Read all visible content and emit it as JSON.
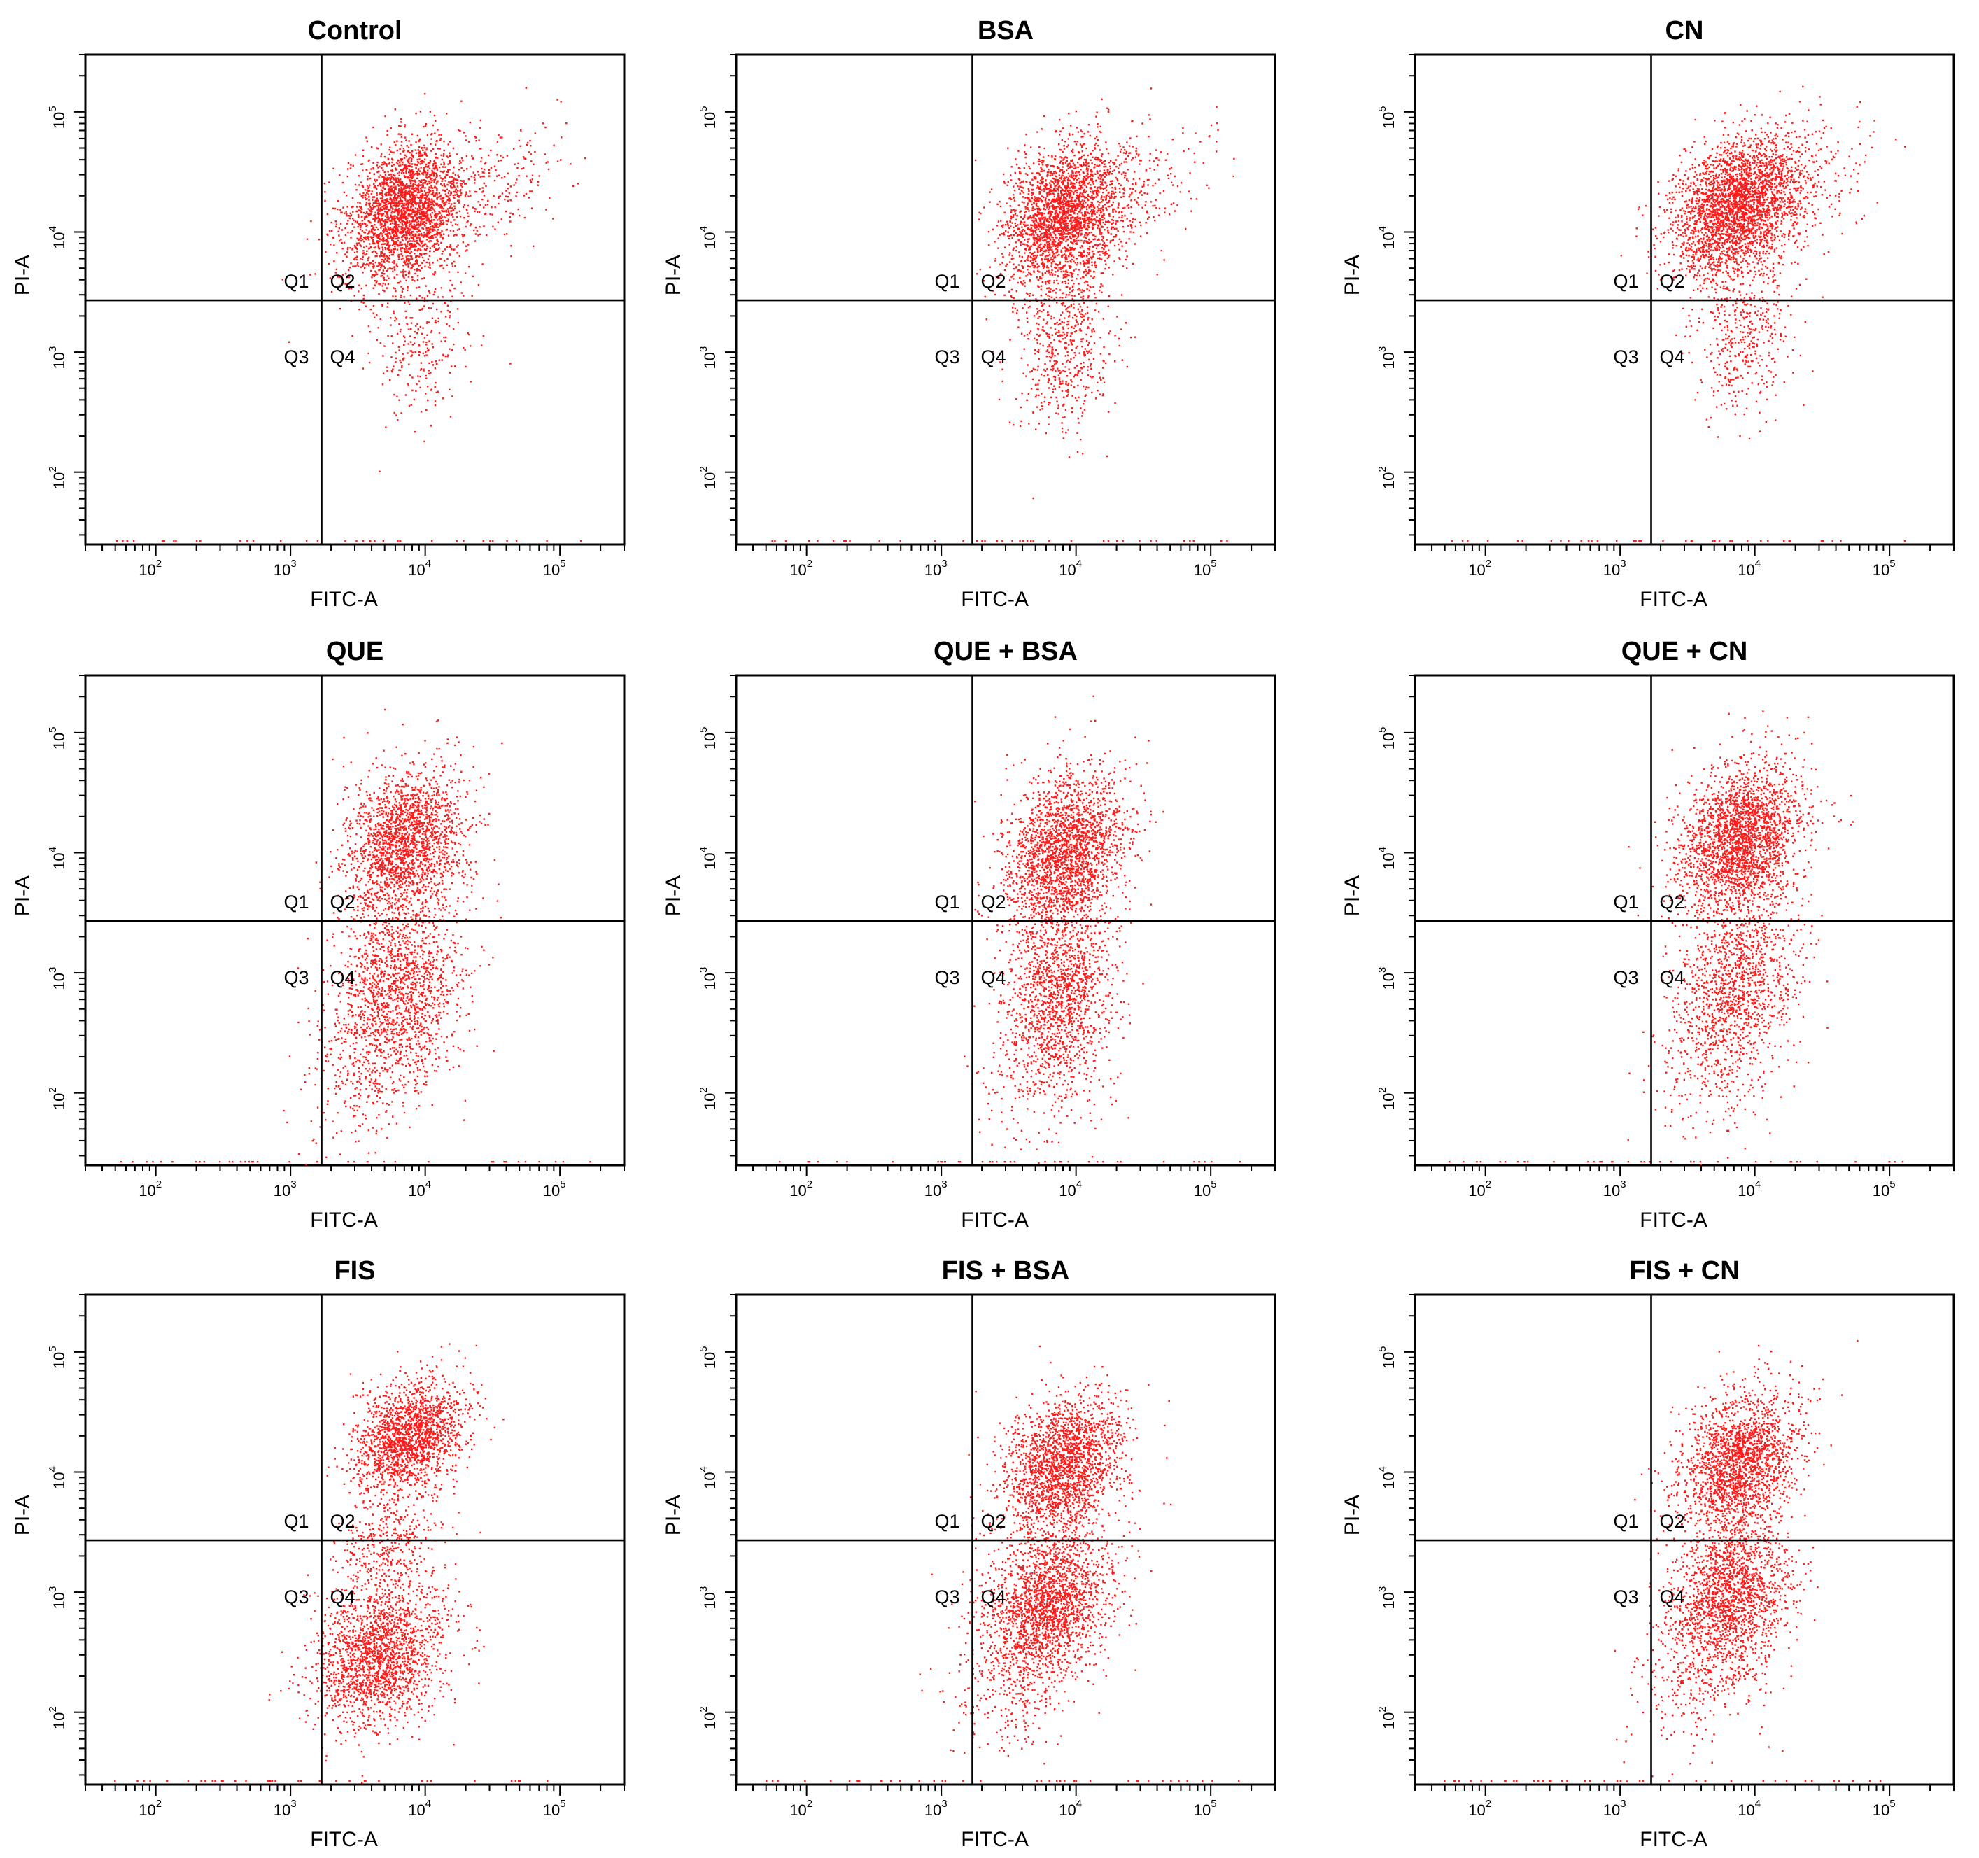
{
  "figure": {
    "point_color": "#ff1a1a",
    "frame_color": "#000000"
  },
  "chart_data": [
    {
      "type": "scatter",
      "title": "Control",
      "xlabel": "FITC-A",
      "ylabel": "PI-A",
      "xscale": "log",
      "yscale": "log",
      "xlim": [
        30,
        300000
      ],
      "ylim": [
        25,
        300000
      ],
      "xticks": [
        {
          "base": "10",
          "exp": "2"
        },
        {
          "base": "10",
          "exp": "3"
        },
        {
          "base": "10",
          "exp": "4"
        },
        {
          "base": "10",
          "exp": "5"
        }
      ],
      "yticks": [
        {
          "base": "10",
          "exp": "2"
        },
        {
          "base": "10",
          "exp": "3"
        },
        {
          "base": "10",
          "exp": "4"
        },
        {
          "base": "10",
          "exp": "5"
        }
      ],
      "gate": {
        "x": 1700,
        "y": 2700
      },
      "quadrant_labels": [
        "Q1",
        "Q2",
        "Q3",
        "Q4"
      ],
      "populations": [
        {
          "cx": 7000,
          "cy": 15000,
          "sx": 0.22,
          "sy": 0.28,
          "n": 2600
        },
        {
          "cx": 9000,
          "cy": 1400,
          "sx": 0.18,
          "sy": 0.35,
          "n": 300
        },
        {
          "cx": 20000,
          "cy": 20000,
          "sx": 0.35,
          "sy": 0.25,
          "n": 300
        }
      ]
    },
    {
      "type": "scatter",
      "title": "BSA",
      "xlabel": "FITC-A",
      "ylabel": "PI-A",
      "xscale": "log",
      "yscale": "log",
      "xlim": [
        30,
        300000
      ],
      "ylim": [
        25,
        300000
      ],
      "xticks": [
        {
          "base": "10",
          "exp": "2"
        },
        {
          "base": "10",
          "exp": "3"
        },
        {
          "base": "10",
          "exp": "4"
        },
        {
          "base": "10",
          "exp": "5"
        }
      ],
      "yticks": [
        {
          "base": "10",
          "exp": "2"
        },
        {
          "base": "10",
          "exp": "3"
        },
        {
          "base": "10",
          "exp": "4"
        },
        {
          "base": "10",
          "exp": "5"
        }
      ],
      "gate": {
        "x": 1700,
        "y": 2700
      },
      "quadrant_labels": [
        "Q1",
        "Q2",
        "Q3",
        "Q4"
      ],
      "populations": [
        {
          "cx": 8000,
          "cy": 14000,
          "sx": 0.22,
          "sy": 0.28,
          "n": 2400
        },
        {
          "cx": 8000,
          "cy": 1200,
          "sx": 0.18,
          "sy": 0.38,
          "n": 600
        },
        {
          "cx": 20000,
          "cy": 20000,
          "sx": 0.35,
          "sy": 0.25,
          "n": 300
        }
      ]
    },
    {
      "type": "scatter",
      "title": "CN",
      "xlabel": "FITC-A",
      "ylabel": "PI-A",
      "xscale": "log",
      "yscale": "log",
      "xlim": [
        30,
        300000
      ],
      "ylim": [
        25,
        300000
      ],
      "xticks": [
        {
          "base": "10",
          "exp": "2"
        },
        {
          "base": "10",
          "exp": "3"
        },
        {
          "base": "10",
          "exp": "4"
        },
        {
          "base": "10",
          "exp": "5"
        }
      ],
      "yticks": [
        {
          "base": "10",
          "exp": "2"
        },
        {
          "base": "10",
          "exp": "3"
        },
        {
          "base": "10",
          "exp": "4"
        },
        {
          "base": "10",
          "exp": "5"
        }
      ],
      "gate": {
        "x": 1700,
        "y": 2700
      },
      "quadrant_labels": [
        "Q1",
        "Q2",
        "Q3",
        "Q4"
      ],
      "populations": [
        {
          "cx": 7000,
          "cy": 16000,
          "sx": 0.24,
          "sy": 0.28,
          "n": 2800
        },
        {
          "cx": 8000,
          "cy": 1300,
          "sx": 0.18,
          "sy": 0.3,
          "n": 400
        },
        {
          "cx": 20000,
          "cy": 25000,
          "sx": 0.3,
          "sy": 0.25,
          "n": 250
        }
      ]
    },
    {
      "type": "scatter",
      "title": "QUE",
      "xlabel": "FITC-A",
      "ylabel": "PI-A",
      "xscale": "log",
      "yscale": "log",
      "xlim": [
        30,
        300000
      ],
      "ylim": [
        25,
        300000
      ],
      "xticks": [
        {
          "base": "10",
          "exp": "2"
        },
        {
          "base": "10",
          "exp": "3"
        },
        {
          "base": "10",
          "exp": "4"
        },
        {
          "base": "10",
          "exp": "5"
        }
      ],
      "yticks": [
        {
          "base": "10",
          "exp": "2"
        },
        {
          "base": "10",
          "exp": "3"
        },
        {
          "base": "10",
          "exp": "4"
        },
        {
          "base": "10",
          "exp": "5"
        }
      ],
      "gate": {
        "x": 1700,
        "y": 2700
      },
      "quadrant_labels": [
        "Q1",
        "Q2",
        "Q3",
        "Q4"
      ],
      "populations": [
        {
          "cx": 7000,
          "cy": 12000,
          "sx": 0.22,
          "sy": 0.3,
          "n": 2000
        },
        {
          "cx": 6000,
          "cy": 700,
          "sx": 0.24,
          "sy": 0.38,
          "n": 1500
        },
        {
          "cx": 4000,
          "cy": 150,
          "sx": 0.25,
          "sy": 0.3,
          "n": 250
        }
      ]
    },
    {
      "type": "scatter",
      "title": "QUE + BSA",
      "xlabel": "FITC-A",
      "ylabel": "PI-A",
      "xscale": "log",
      "yscale": "log",
      "xlim": [
        30,
        300000
      ],
      "ylim": [
        25,
        300000
      ],
      "xticks": [
        {
          "base": "10",
          "exp": "2"
        },
        {
          "base": "10",
          "exp": "3"
        },
        {
          "base": "10",
          "exp": "4"
        },
        {
          "base": "10",
          "exp": "5"
        }
      ],
      "yticks": [
        {
          "base": "10",
          "exp": "2"
        },
        {
          "base": "10",
          "exp": "3"
        },
        {
          "base": "10",
          "exp": "4"
        },
        {
          "base": "10",
          "exp": "5"
        }
      ],
      "gate": {
        "x": 1700,
        "y": 2700
      },
      "quadrant_labels": [
        "Q1",
        "Q2",
        "Q3",
        "Q4"
      ],
      "populations": [
        {
          "cx": 8000,
          "cy": 10000,
          "sx": 0.22,
          "sy": 0.32,
          "n": 2200
        },
        {
          "cx": 7500,
          "cy": 700,
          "sx": 0.2,
          "sy": 0.35,
          "n": 1300
        },
        {
          "cx": 6000,
          "cy": 150,
          "sx": 0.25,
          "sy": 0.3,
          "n": 250
        }
      ]
    },
    {
      "type": "scatter",
      "title": "QUE + CN",
      "xlabel": "FITC-A",
      "ylabel": "PI-A",
      "xscale": "log",
      "yscale": "log",
      "xlim": [
        30,
        300000
      ],
      "ylim": [
        25,
        300000
      ],
      "xticks": [
        {
          "base": "10",
          "exp": "2"
        },
        {
          "base": "10",
          "exp": "3"
        },
        {
          "base": "10",
          "exp": "4"
        },
        {
          "base": "10",
          "exp": "5"
        }
      ],
      "yticks": [
        {
          "base": "10",
          "exp": "2"
        },
        {
          "base": "10",
          "exp": "3"
        },
        {
          "base": "10",
          "exp": "4"
        },
        {
          "base": "10",
          "exp": "5"
        }
      ],
      "gate": {
        "x": 1700,
        "y": 2700
      },
      "quadrant_labels": [
        "Q1",
        "Q2",
        "Q3",
        "Q4"
      ],
      "populations": [
        {
          "cx": 8000,
          "cy": 13000,
          "sx": 0.22,
          "sy": 0.3,
          "n": 2400
        },
        {
          "cx": 7000,
          "cy": 800,
          "sx": 0.22,
          "sy": 0.35,
          "n": 1200
        },
        {
          "cx": 5000,
          "cy": 150,
          "sx": 0.25,
          "sy": 0.3,
          "n": 200
        }
      ]
    },
    {
      "type": "scatter",
      "title": "FIS",
      "xlabel": "FITC-A",
      "ylabel": "PI-A",
      "xscale": "log",
      "yscale": "log",
      "xlim": [
        30,
        300000
      ],
      "ylim": [
        25,
        300000
      ],
      "xticks": [
        {
          "base": "10",
          "exp": "2"
        },
        {
          "base": "10",
          "exp": "3"
        },
        {
          "base": "10",
          "exp": "4"
        },
        {
          "base": "10",
          "exp": "5"
        }
      ],
      "yticks": [
        {
          "base": "10",
          "exp": "2"
        },
        {
          "base": "10",
          "exp": "3"
        },
        {
          "base": "10",
          "exp": "4"
        },
        {
          "base": "10",
          "exp": "5"
        }
      ],
      "gate": {
        "x": 1700,
        "y": 2700
      },
      "quadrant_labels": [
        "Q1",
        "Q2",
        "Q3",
        "Q4"
      ],
      "populations": [
        {
          "cx": 7500,
          "cy": 20000,
          "sx": 0.2,
          "sy": 0.22,
          "n": 1800
        },
        {
          "cx": 4500,
          "cy": 300,
          "sx": 0.24,
          "sy": 0.3,
          "n": 1900
        },
        {
          "cx": 5000,
          "cy": 2500,
          "sx": 0.2,
          "sy": 0.2,
          "n": 350
        }
      ]
    },
    {
      "type": "scatter",
      "title": "FIS + BSA",
      "xlabel": "FITC-A",
      "ylabel": "PI-A",
      "xscale": "log",
      "yscale": "log",
      "xlim": [
        30,
        300000
      ],
      "ylim": [
        25,
        300000
      ],
      "xticks": [
        {
          "base": "10",
          "exp": "2"
        },
        {
          "base": "10",
          "exp": "3"
        },
        {
          "base": "10",
          "exp": "4"
        },
        {
          "base": "10",
          "exp": "5"
        }
      ],
      "yticks": [
        {
          "base": "10",
          "exp": "2"
        },
        {
          "base": "10",
          "exp": "3"
        },
        {
          "base": "10",
          "exp": "4"
        },
        {
          "base": "10",
          "exp": "5"
        }
      ],
      "gate": {
        "x": 1700,
        "y": 2700
      },
      "quadrant_labels": [
        "Q1",
        "Q2",
        "Q3",
        "Q4"
      ],
      "populations": [
        {
          "cx": 8000,
          "cy": 12000,
          "sx": 0.22,
          "sy": 0.28,
          "n": 2000
        },
        {
          "cx": 6000,
          "cy": 800,
          "sx": 0.24,
          "sy": 0.3,
          "n": 2000
        },
        {
          "cx": 3500,
          "cy": 200,
          "sx": 0.25,
          "sy": 0.3,
          "n": 300
        }
      ]
    },
    {
      "type": "scatter",
      "title": "FIS + CN",
      "xlabel": "FITC-A",
      "ylabel": "PI-A",
      "xscale": "log",
      "yscale": "log",
      "xlim": [
        30,
        300000
      ],
      "ylim": [
        25,
        300000
      ],
      "xticks": [
        {
          "base": "10",
          "exp": "2"
        },
        {
          "base": "10",
          "exp": "3"
        },
        {
          "base": "10",
          "exp": "4"
        },
        {
          "base": "10",
          "exp": "5"
        }
      ],
      "yticks": [
        {
          "base": "10",
          "exp": "2"
        },
        {
          "base": "10",
          "exp": "3"
        },
        {
          "base": "10",
          "exp": "4"
        },
        {
          "base": "10",
          "exp": "5"
        }
      ],
      "gate": {
        "x": 1700,
        "y": 2700
      },
      "quadrant_labels": [
        "Q1",
        "Q2",
        "Q3",
        "Q4"
      ],
      "populations": [
        {
          "cx": 7500,
          "cy": 12000,
          "sx": 0.22,
          "sy": 0.28,
          "n": 2000
        },
        {
          "cx": 6500,
          "cy": 900,
          "sx": 0.22,
          "sy": 0.3,
          "n": 1700
        },
        {
          "cx": 4000,
          "cy": 200,
          "sx": 0.25,
          "sy": 0.3,
          "n": 300
        }
      ]
    }
  ]
}
